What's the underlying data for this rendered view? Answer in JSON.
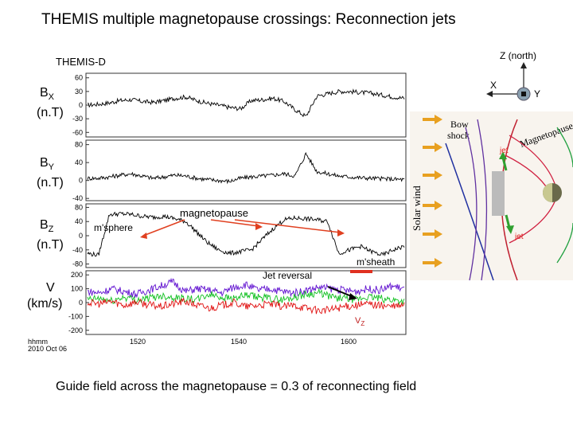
{
  "title": "THEMIS multiple magnetopause crossings: Reconnection jets",
  "spacecraft": "THEMIS-D",
  "footer": "Guide field across the magnetopause = 0.3  of reconnecting field",
  "date_label": "hhmm\n2010 Oct 06",
  "date_line1": "hhmm",
  "date_line2": "2010 Oct 06",
  "annotations": {
    "magnetopause": "magnetopause",
    "msphere": "m'sphere",
    "msheath": "m'sheath",
    "jet_reversal": "Jet reversal",
    "vz": "V",
    "vz_sub": "Z"
  },
  "diagram": {
    "z_north": "Z (north)",
    "x": "X",
    "y": "Y",
    "bow_shock": "Bow\nshock",
    "bow_shock_l1": "Bow",
    "bow_shock_l2": "shock",
    "magnetopause": "Magnetopause",
    "solar_wind": "Solar wind",
    "jet_top": "jet",
    "jet_bottom": "jet"
  },
  "colors": {
    "arrow": "#e8a020",
    "jet_arrow": "#30a030",
    "mp_line": "#e04020",
    "jet_reversal_bar": "#e03020",
    "field_red": "#d02040",
    "field_purple": "#6030a0",
    "field_green": "#20a040",
    "vx": "#6010d0",
    "vy": "#10c020",
    "vz": "#e01010"
  },
  "chart_data": [
    {
      "type": "line",
      "panel": "Bx",
      "ylabel": "BX (n.T)",
      "ylabel_main": "B",
      "ylabel_sub": "X",
      "ylabel_unit": "(n.T)",
      "yticks": [
        60,
        30,
        0,
        -30,
        -60
      ],
      "ylim": [
        -70,
        70
      ],
      "series": [
        {
          "values": [
            0,
            2,
            5,
            10,
            12,
            8,
            6,
            10,
            15,
            18,
            10,
            4,
            0,
            -5,
            -8,
            10,
            12,
            15,
            8,
            -10,
            -25,
            20,
            25,
            30,
            30,
            28,
            26,
            22,
            18,
            15
          ]
        }
      ]
    },
    {
      "type": "line",
      "panel": "By",
      "ylabel": "BY (n.T)",
      "ylabel_main": "B",
      "ylabel_sub": "Y",
      "ylabel_unit": "(n.T)",
      "yticks": [
        80,
        40,
        0,
        -40
      ],
      "ylim": [
        -45,
        90
      ],
      "series": [
        {
          "values": [
            5,
            5,
            8,
            12,
            15,
            10,
            5,
            8,
            12,
            10,
            5,
            2,
            0,
            -2,
            5,
            8,
            10,
            12,
            15,
            10,
            60,
            20,
            15,
            10,
            8,
            6,
            5,
            4,
            3,
            2
          ]
        }
      ]
    },
    {
      "type": "line",
      "panel": "Bz",
      "ylabel": "BZ (n.T)",
      "ylabel_main": "B",
      "ylabel_sub": "Z",
      "ylabel_unit": "(n.T)",
      "yticks": [
        80,
        40,
        0,
        -40,
        -80
      ],
      "ylim": [
        -90,
        90
      ],
      "series": [
        {
          "values": [
            -50,
            -55,
            60,
            62,
            60,
            55,
            52,
            55,
            48,
            40,
            10,
            -20,
            -40,
            -50,
            -45,
            -40,
            -10,
            20,
            45,
            50,
            48,
            45,
            40,
            -50,
            -40,
            -30,
            -45,
            -55,
            -40,
            -30
          ]
        }
      ]
    },
    {
      "type": "line",
      "panel": "V",
      "ylabel": "V (km/s)",
      "ylabel_main": "V",
      "ylabel_unit": "(km/s)",
      "yticks": [
        200,
        100,
        0,
        -100,
        -200
      ],
      "ylim": [
        -230,
        230
      ],
      "xticks": [
        "1520",
        "1540",
        "1600"
      ],
      "series": [
        {
          "values": [
            80,
            70,
            100,
            80,
            60,
            90,
            120,
            150,
            80,
            100,
            90,
            70,
            110,
            130,
            90,
            100,
            80,
            70,
            90,
            110,
            100,
            90,
            80,
            100,
            90,
            120,
            100
          ]
        },
        {
          "values": [
            20,
            30,
            10,
            40,
            20,
            30,
            50,
            40,
            30,
            20,
            60,
            40,
            30,
            50,
            40,
            30,
            20,
            40,
            60,
            70,
            40,
            30,
            20,
            40,
            30,
            20,
            10
          ]
        },
        {
          "values": [
            0,
            -10,
            10,
            -20,
            5,
            -15,
            -30,
            -10,
            10,
            -20,
            -40,
            -20,
            0,
            -30,
            -20,
            -10,
            -30,
            -20,
            -40,
            -60,
            -50,
            -30,
            -20,
            -10,
            -20,
            -30,
            -20
          ]
        }
      ]
    }
  ]
}
